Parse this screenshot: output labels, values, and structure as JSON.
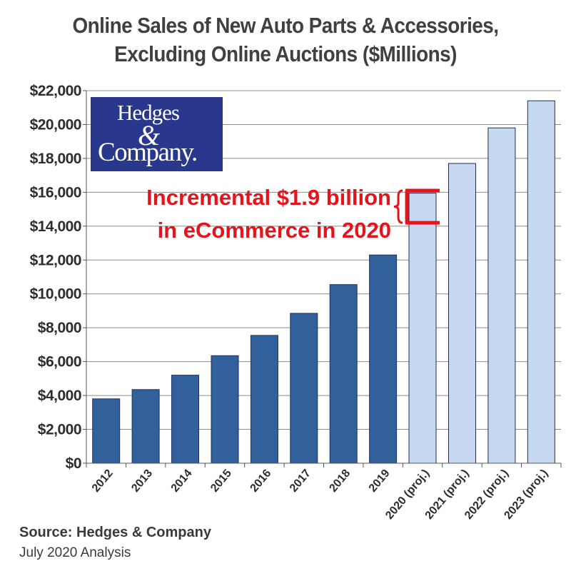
{
  "title_line1": "Online Sales of New Auto Parts & Accessories,",
  "title_line2": "Excluding Online Auctions ($Millions)",
  "logo": {
    "line1": "Hedges",
    "line2": "&",
    "line3": "Company."
  },
  "annotation": {
    "line1": "Incremental $1.9 billion",
    "line2": "in eCommerce in 2020"
  },
  "source": "Source: Hedges & Company",
  "date": "July 2020 Analysis",
  "colors": {
    "actual_bar": "#31609a",
    "projected_bar": "#c6d9f1",
    "annotation": "#e3141b",
    "logo_background": "#29378c"
  },
  "chart_data": {
    "type": "bar",
    "categories": [
      "2012",
      "2013",
      "2014",
      "2015",
      "2016",
      "2017",
      "2018",
      "2019",
      "2020 (proj.)",
      "2021 (proj.)",
      "2022 (proj.)",
      "2023 (proj.)"
    ],
    "values": [
      3800,
      4350,
      5200,
      6350,
      7550,
      8850,
      10550,
      12300,
      15950,
      17700,
      19800,
      21400
    ],
    "projected": [
      false,
      false,
      false,
      false,
      false,
      false,
      false,
      false,
      true,
      true,
      true,
      true
    ],
    "ylim": [
      0,
      22000
    ],
    "ytick_labels": [
      "$0",
      "$2,000",
      "$4,000",
      "$6,000",
      "$8,000",
      "$10,000",
      "$12,000",
      "$14,000",
      "$16,000",
      "$18,000",
      "$20,000",
      "$22,000"
    ],
    "grid": true,
    "bracket": {
      "category": "2020 (proj.)",
      "from": 14200,
      "to": 16100
    }
  }
}
